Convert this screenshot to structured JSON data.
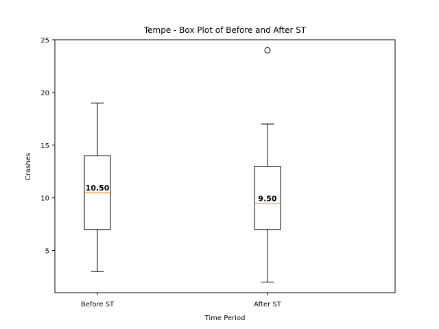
{
  "chart_data": {
    "type": "box",
    "title": "Tempe - Box Plot of Before and After ST",
    "xlabel": "Time Period",
    "ylabel": "Crashes",
    "ylim": [
      1,
      25
    ],
    "yticks": [
      5,
      10,
      15,
      20,
      25
    ],
    "grid": false,
    "categories": [
      "Before ST",
      "After ST"
    ],
    "boxes": [
      {
        "category": "Before ST",
        "whisker_low": 3,
        "q1": 7,
        "median": 10.5,
        "q3": 14,
        "whisker_high": 19,
        "outliers": [],
        "median_label": "10.50"
      },
      {
        "category": "After ST",
        "whisker_low": 2,
        "q1": 7,
        "median": 9.5,
        "q3": 13,
        "whisker_high": 17,
        "outliers": [
          24
        ],
        "median_label": "9.50"
      }
    ],
    "colors": {
      "box": "#000000",
      "median": "#ff7f0e",
      "outlier": "#000000"
    }
  }
}
